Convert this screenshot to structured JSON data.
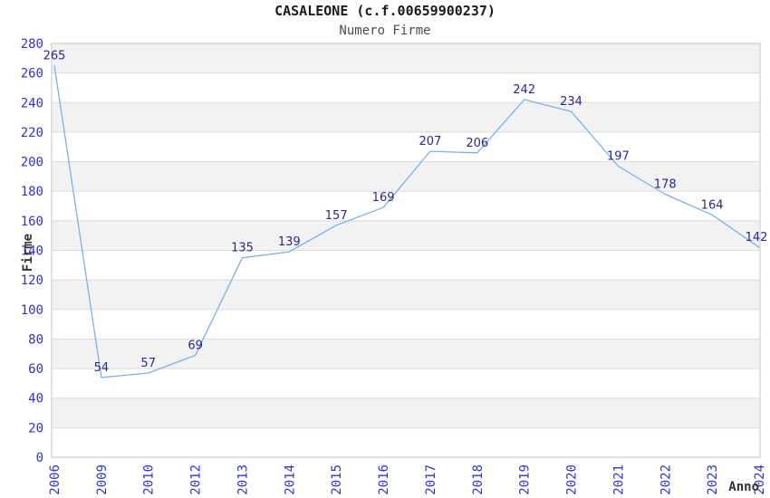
{
  "page": {
    "title": "CASALEONE (c.f.00659900237)",
    "subtitle": "Numero Firme"
  },
  "chart_data": {
    "type": "line",
    "title": "CASALEONE (c.f.00659900237)",
    "subtitle": "Numero Firme",
    "xlabel": "Anno",
    "ylabel": "Firme",
    "categories": [
      "2006",
      "2009",
      "2010",
      "2012",
      "2013",
      "2014",
      "2015",
      "2016",
      "2017",
      "2018",
      "2019",
      "2020",
      "2021",
      "2022",
      "2023",
      "2024"
    ],
    "values": [
      265,
      54,
      57,
      69,
      135,
      139,
      157,
      169,
      207,
      206,
      242,
      234,
      197,
      178,
      164,
      142
    ],
    "point_labels": true,
    "ylim": [
      0,
      280
    ],
    "ytick_step": 20,
    "yticks": [
      0,
      20,
      40,
      60,
      80,
      100,
      120,
      140,
      160,
      180,
      200,
      220,
      240,
      260,
      280
    ],
    "grid": "horizontal",
    "bands": "alternating",
    "legend": "none",
    "colors": {
      "line": "#7fb0e4",
      "point_label": "#28288c",
      "tick_label": "#3333cc",
      "axis_title": "#333333",
      "band": "#f2f2f2",
      "grid": "#dcdcdc",
      "axis_border": "#c6c6c6",
      "background": "#ffffff",
      "title": "#1a1a1a",
      "subtitle": "#4d4d4d"
    }
  }
}
